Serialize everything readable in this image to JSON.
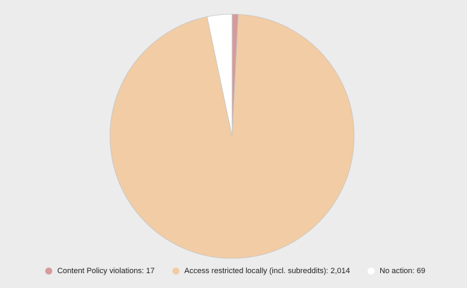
{
  "chart_data": {
    "type": "pie",
    "categories": [
      "Content Policy violations: 17",
      "Access restricted locally (incl. subreddits): 2,014",
      "No action: 69"
    ],
    "values": [
      17,
      2014,
      69
    ],
    "colors": [
      "#d69a9c",
      "#f2cca4",
      "#ffffff"
    ]
  }
}
